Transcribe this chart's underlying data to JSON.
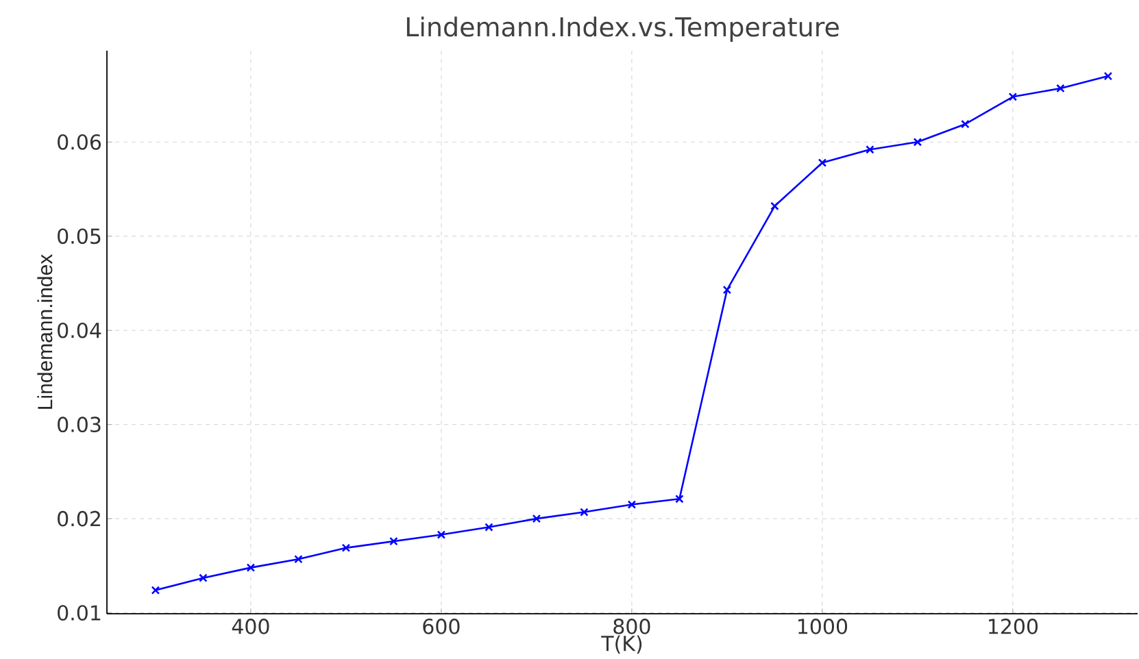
{
  "chart_data": {
    "type": "line",
    "title": "Lindemann.Index.vs.Temperature",
    "xlabel": "T(K)",
    "ylabel": "Lindemann.index",
    "x": [
      300,
      350,
      400,
      450,
      500,
      550,
      600,
      650,
      700,
      750,
      800,
      850,
      900,
      950,
      1000,
      1050,
      1100,
      1150,
      1200,
      1250,
      1300
    ],
    "series": [
      {
        "color": "#0000ff",
        "values": [
          0.0124,
          0.0137,
          0.0148,
          0.0157,
          0.0169,
          0.0176,
          0.0183,
          0.0191,
          0.02,
          0.0207,
          0.0215,
          0.0221,
          0.0443,
          0.0532,
          0.0578,
          0.0592,
          0.06,
          0.0619,
          0.0648,
          0.0657,
          0.067
        ]
      }
    ],
    "xlim": [
      249,
      1331
    ],
    "ylim": [
      0.0099,
      0.0697
    ],
    "xticks": [
      400,
      600,
      800,
      1000,
      1200
    ],
    "yticks": [
      {
        "value": 0.01,
        "label": "0.01"
      },
      {
        "value": 0.02,
        "label": "0.02"
      },
      {
        "value": 0.03,
        "label": "0.03"
      },
      {
        "value": 0.04,
        "label": "0.04"
      },
      {
        "value": 0.05,
        "label": "0.05"
      },
      {
        "value": 0.06,
        "label": "0.06"
      }
    ],
    "grid": true,
    "marker": "cross",
    "line_style": "solid"
  }
}
